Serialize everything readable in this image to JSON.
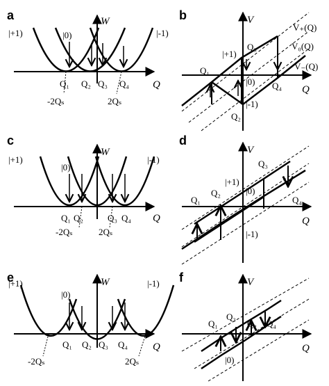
{
  "panels": [
    {
      "id": "a",
      "letter": "a",
      "kind": "energy",
      "axis_y": "W",
      "axis_x": "Q",
      "left_state": "|+1)",
      "right_state": "|-1)",
      "mid_state": "|0)",
      "q_labels": [
        "Q₁",
        "Q₂",
        "Q₃",
        "Q₄"
      ],
      "qs_left": "-2Qₛ",
      "qs_right": "2Qₛ"
    },
    {
      "id": "b",
      "letter": "b",
      "kind": "hysteresis",
      "axis_y": "V",
      "axis_x": "Q",
      "q_labels": [
        "Q₁",
        "Q₂",
        "Q₃",
        "Q₄"
      ],
      "states": [
        "|+1)",
        "|0)",
        "|-1)"
      ],
      "lines": [
        "V₊(Q)",
        "V₀(Q)",
        "V₋(Q)"
      ]
    },
    {
      "id": "c",
      "letter": "c",
      "kind": "energy",
      "axis_y": "W",
      "axis_x": "Q",
      "left_state": "|+1)",
      "right_state": "|-1)",
      "mid_state": "|0)",
      "q_labels": [
        "Q₁",
        "Q₂",
        "Q₃",
        "Q₄"
      ],
      "qs_left": "-2Qₛ",
      "qs_right": "2Qₛ"
    },
    {
      "id": "d",
      "letter": "d",
      "kind": "hysteresis",
      "axis_y": "V",
      "axis_x": "Q",
      "q_labels": [
        "Q₁",
        "Q₂",
        "Q₃",
        "Q₄"
      ],
      "states": [
        "|+1)",
        "|0)",
        "|-1)"
      ]
    },
    {
      "id": "e",
      "letter": "e",
      "kind": "energy",
      "axis_y": "W",
      "axis_x": "Q",
      "left_state": "|+1)",
      "right_state": "|-1)",
      "mid_state": "|0)",
      "q_labels": [
        "Q₁",
        "Q₂",
        "Q₃",
        "Q₄"
      ],
      "qs_left": "-2Qₛ",
      "qs_right": "2Qₛ"
    },
    {
      "id": "f",
      "letter": "f",
      "kind": "hysteresis",
      "axis_y": "V",
      "axis_x": "Q",
      "q_labels": [
        "Q₁",
        "Q₂",
        "Q₃",
        "Q₄"
      ],
      "states": [
        "|0)"
      ]
    }
  ]
}
